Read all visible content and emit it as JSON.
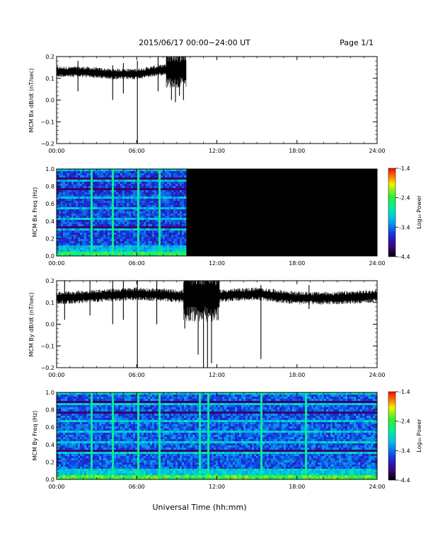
{
  "header": {
    "date_range": "2015/06/17  00:00−24:00 UT",
    "page": "Page 1/1"
  },
  "footer": {
    "xlabel": "Universal Time (hh:mm)"
  },
  "x_ticks": [
    "00:00",
    "06:00",
    "12:00",
    "18:00",
    "24:00"
  ],
  "colors": {
    "trace": "#000000",
    "axes": "#000000",
    "background": "#ffffff"
  },
  "colorbar": {
    "label": "Log₁₀ Power",
    "ticks": [
      "-1.4",
      "-2.4",
      "-3.4",
      "-4.4"
    ],
    "tick_values": [
      -1.4,
      -2.4,
      -3.4,
      -4.4
    ],
    "range": [
      -4.4,
      -1.4
    ],
    "colormap": "rainbow (black-purple-blue-cyan-green-yellow-red)"
  },
  "chart_data": [
    {
      "type": "line",
      "name": "bx-line",
      "ylabel": "MCM Bx dB/dt (nT/sec)",
      "xlim_hours": [
        0,
        24
      ],
      "ylim": [
        -0.2,
        0.2
      ],
      "y_ticks": [
        "0.2",
        "0.1",
        "0.0",
        "−0.1",
        "−0.2"
      ],
      "y_tick_values": [
        0.2,
        0.1,
        0.0,
        -0.1,
        -0.2
      ],
      "data_end_hour": 9.7,
      "baseline_segments": [
        [
          0,
          0.13
        ],
        [
          2,
          0.13
        ],
        [
          4,
          0.12
        ],
        [
          6,
          0.12
        ],
        [
          8,
          0.14
        ],
        [
          9.7,
          0.14
        ]
      ],
      "noise_amplitude": 0.025,
      "spikes": [
        {
          "x": 1.6,
          "ymin": 0.04,
          "ymax": 0.18
        },
        {
          "x": 4.2,
          "ymin": 0.0,
          "ymax": 0.16
        },
        {
          "x": 5.0,
          "ymin": 0.03,
          "ymax": 0.17
        },
        {
          "x": 6.05,
          "ymin": -0.2,
          "ymax": 0.18
        },
        {
          "x": 7.6,
          "ymin": 0.04,
          "ymax": 0.2
        },
        {
          "x": 8.6,
          "ymin": 0.0,
          "ymax": 0.2
        },
        {
          "x": 8.9,
          "ymin": -0.01,
          "ymax": 0.2
        },
        {
          "x": 9.2,
          "ymin": 0.02,
          "ymax": 0.2
        },
        {
          "x": 9.5,
          "ymin": 0.0,
          "ymax": 0.2
        }
      ],
      "burst": {
        "x0": 8.2,
        "x1": 9.7,
        "amplitude": 0.06
      }
    },
    {
      "type": "heatmap",
      "name": "bx-spectrogram",
      "ylabel": "MCM Bx Freq (Hz)",
      "xlim_hours": [
        0,
        24
      ],
      "ylim": [
        0.0,
        1.0
      ],
      "y_ticks": [
        "1.0",
        "0.8",
        "0.6",
        "0.4",
        "0.2",
        "0.0"
      ],
      "y_tick_values": [
        1.0,
        0.8,
        0.6,
        0.4,
        0.2,
        0.0
      ],
      "data_end_hour": 9.7,
      "background_log_power": -3.6,
      "low_freq_log_power": -2.6,
      "harmonic_spacing_hz": 0.0625,
      "harmonic_log_power": -3.1,
      "bright_columns_hours": [
        1.2,
        2.6,
        4.2,
        5.0,
        6.05,
        7.6
      ]
    },
    {
      "type": "line",
      "name": "by-line",
      "ylabel": "MCM By dB/dt (nT/sec)",
      "xlim_hours": [
        0,
        24
      ],
      "ylim": [
        -0.2,
        0.2
      ],
      "y_ticks": [
        "0.2",
        "0.1",
        "0.0",
        "−0.1",
        "−0.2"
      ],
      "y_tick_values": [
        0.2,
        0.1,
        0.0,
        -0.1,
        -0.2
      ],
      "data_end_hour": 24,
      "baseline_segments": [
        [
          0,
          0.12
        ],
        [
          3,
          0.13
        ],
        [
          6,
          0.14
        ],
        [
          9,
          0.13
        ],
        [
          12,
          0.13
        ],
        [
          15,
          0.14
        ],
        [
          18,
          0.12
        ],
        [
          21,
          0.12
        ],
        [
          24,
          0.13
        ]
      ],
      "noise_amplitude": 0.03,
      "spikes": [
        {
          "x": 0.6,
          "ymin": 0.02,
          "ymax": 0.2
        },
        {
          "x": 2.5,
          "ymin": 0.04,
          "ymax": 0.2
        },
        {
          "x": 4.2,
          "ymin": 0.0,
          "ymax": 0.2
        },
        {
          "x": 5.0,
          "ymin": 0.02,
          "ymax": 0.2
        },
        {
          "x": 6.05,
          "ymin": -0.2,
          "ymax": 0.2
        },
        {
          "x": 7.5,
          "ymin": 0.0,
          "ymax": 0.2
        },
        {
          "x": 9.6,
          "ymin": -0.02,
          "ymax": 0.2
        },
        {
          "x": 10.6,
          "ymin": -0.14,
          "ymax": 0.2
        },
        {
          "x": 11.0,
          "ymin": -0.2,
          "ymax": 0.2
        },
        {
          "x": 11.3,
          "ymin": -0.2,
          "ymax": 0.2
        },
        {
          "x": 11.6,
          "ymin": -0.18,
          "ymax": 0.2
        },
        {
          "x": 15.3,
          "ymin": -0.16,
          "ymax": 0.18
        },
        {
          "x": 18.9,
          "ymin": 0.07,
          "ymax": 0.18
        }
      ],
      "burst": {
        "x0": 9.5,
        "x1": 12.2,
        "amplitude": 0.09
      }
    },
    {
      "type": "heatmap",
      "name": "by-spectrogram",
      "ylabel": "MCM By Freq (Hz)",
      "xlim_hours": [
        0,
        24
      ],
      "ylim": [
        0.0,
        1.0
      ],
      "y_ticks": [
        "1.0",
        "0.8",
        "0.6",
        "0.4",
        "0.2",
        "0.0"
      ],
      "y_tick_values": [
        1.0,
        0.8,
        0.6,
        0.4,
        0.2,
        0.0
      ],
      "data_end_hour": 24,
      "background_log_power": -3.5,
      "low_freq_log_power": -2.5,
      "harmonic_spacing_hz": 0.0625,
      "harmonic_log_power": -3.0,
      "bright_columns_hours": [
        2.6,
        4.2,
        5.0,
        6.05,
        7.6,
        10.6,
        11.3,
        15.3,
        18.6
      ]
    }
  ]
}
